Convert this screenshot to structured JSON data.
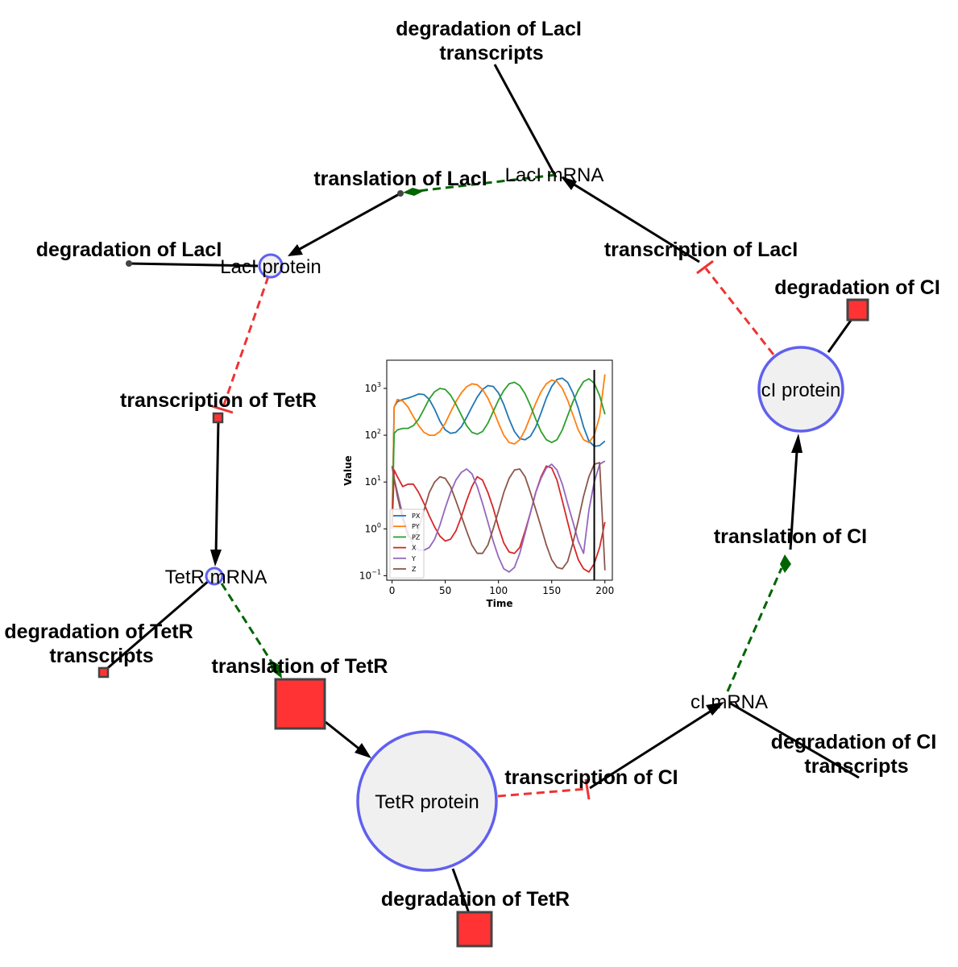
{
  "diagram": {
    "species": [
      {
        "id": "lacI_mrna",
        "label": "LacI mRNA"
      },
      {
        "id": "lacI_protein",
        "label": "LacI protein"
      },
      {
        "id": "tetR_mrna",
        "label": "TetR mRNA"
      },
      {
        "id": "tetR_protein",
        "label": "TetR protein"
      },
      {
        "id": "cI_mrna",
        "label": "cI mRNA"
      },
      {
        "id": "cI_protein",
        "label": "cI protein"
      }
    ],
    "reactions": [
      {
        "id": "deg_lacI_tx",
        "label_lines": [
          "degradation of LacI",
          "transcripts"
        ]
      },
      {
        "id": "trl_lacI",
        "label_lines": [
          "translation of LacI"
        ]
      },
      {
        "id": "deg_lacI",
        "label_lines": [
          "degradation of LacI"
        ]
      },
      {
        "id": "tsc_lacI",
        "label_lines": [
          "transcription of LacI"
        ]
      },
      {
        "id": "deg_cI",
        "label_lines": [
          "degradation of CI"
        ]
      },
      {
        "id": "tsc_tetR",
        "label_lines": [
          "transcription of TetR"
        ]
      },
      {
        "id": "trl_cI",
        "label_lines": [
          "translation of CI"
        ]
      },
      {
        "id": "deg_tetR_tx",
        "label_lines": [
          "degradation of TetR",
          "transcripts"
        ]
      },
      {
        "id": "trl_tetR",
        "label_lines": [
          "translation of TetR"
        ]
      },
      {
        "id": "deg_cI_tx",
        "label_lines": [
          "degradation of CI",
          "transcripts"
        ]
      },
      {
        "id": "tsc_cI",
        "label_lines": [
          "transcription of CI"
        ]
      },
      {
        "id": "deg_tetR",
        "label_lines": [
          "degradation of TetR"
        ]
      }
    ],
    "colors": {
      "species_fill": "#f0f0f0",
      "species_stroke": "#6060f0",
      "reaction_fill": "#ff3333",
      "reaction_stroke": "#444444",
      "activation": "#006400",
      "inhibition": "#ee3333",
      "flux": "#000000"
    }
  },
  "chart_data": {
    "type": "line",
    "xlabel": "Time",
    "ylabel": "Value",
    "y_scale": "log",
    "xlim": [
      -5,
      207
    ],
    "ylim": [
      0.08,
      4000
    ],
    "x_ticks": [
      0,
      50,
      100,
      150,
      200
    ],
    "y_ticks": [
      {
        "value": 0.1,
        "base": "10",
        "exp": "−1"
      },
      {
        "value": 1,
        "base": "10",
        "exp": "0"
      },
      {
        "value": 10,
        "base": "10",
        "exp": "1"
      },
      {
        "value": 100,
        "base": "10",
        "exp": "2"
      },
      {
        "value": 1000,
        "base": "10",
        "exp": "3"
      }
    ],
    "vline_x": 190,
    "legend_position": "lower-left",
    "series": [
      {
        "name": "PX",
        "color": "#1f77b4",
        "x": [
          0,
          2,
          5,
          10,
          15,
          20,
          25,
          30,
          35,
          40,
          45,
          50,
          55,
          60,
          65,
          70,
          75,
          80,
          85,
          90,
          95,
          100,
          105,
          110,
          115,
          120,
          125,
          130,
          135,
          140,
          145,
          150,
          155,
          160,
          165,
          170,
          175,
          180,
          185,
          190,
          195,
          200
        ],
        "y": [
          1,
          400,
          520,
          580,
          620,
          680,
          760,
          740,
          580,
          360,
          200,
          130,
          110,
          115,
          150,
          240,
          400,
          650,
          950,
          1150,
          1100,
          800,
          450,
          220,
          120,
          85,
          80,
          95,
          150,
          300,
          620,
          1100,
          1550,
          1650,
          1350,
          800,
          380,
          150,
          75,
          58,
          60,
          75
        ]
      },
      {
        "name": "PY",
        "color": "#ff7f0e",
        "x": [
          0,
          2,
          5,
          10,
          15,
          20,
          25,
          30,
          35,
          40,
          45,
          50,
          55,
          60,
          65,
          70,
          75,
          80,
          85,
          90,
          95,
          100,
          105,
          110,
          115,
          120,
          125,
          130,
          135,
          140,
          145,
          150,
          155,
          160,
          165,
          170,
          175,
          180,
          185,
          190,
          195,
          200
        ],
        "y": [
          1,
          400,
          580,
          540,
          400,
          250,
          160,
          115,
          100,
          100,
          120,
          180,
          310,
          520,
          800,
          1080,
          1250,
          1200,
          950,
          620,
          350,
          180,
          100,
          70,
          65,
          80,
          130,
          250,
          480,
          850,
          1250,
          1500,
          1400,
          1000,
          560,
          270,
          130,
          80,
          70,
          100,
          250,
          2000
        ]
      },
      {
        "name": "PZ",
        "color": "#2ca02c",
        "x": [
          0,
          2,
          5,
          10,
          15,
          20,
          25,
          30,
          35,
          40,
          45,
          50,
          55,
          60,
          65,
          70,
          75,
          80,
          85,
          90,
          95,
          100,
          105,
          110,
          115,
          120,
          125,
          130,
          135,
          140,
          145,
          150,
          155,
          160,
          165,
          170,
          175,
          180,
          185,
          190,
          195,
          200
        ],
        "y": [
          1,
          110,
          130,
          140,
          140,
          160,
          220,
          360,
          600,
          850,
          1000,
          950,
          720,
          460,
          270,
          160,
          115,
          105,
          120,
          180,
          320,
          560,
          900,
          1250,
          1350,
          1150,
          770,
          430,
          220,
          120,
          80,
          70,
          80,
          130,
          260,
          520,
          920,
          1400,
          1600,
          1300,
          700,
          280
        ]
      },
      {
        "name": "X",
        "color": "#d62728",
        "x": [
          0,
          2,
          5,
          10,
          15,
          20,
          25,
          30,
          35,
          40,
          45,
          50,
          55,
          60,
          65,
          70,
          75,
          80,
          85,
          90,
          95,
          100,
          105,
          110,
          115,
          120,
          125,
          130,
          135,
          140,
          145,
          150,
          155,
          160,
          165,
          170,
          175,
          180,
          185,
          190,
          195,
          200
        ],
        "y": [
          1,
          18,
          13,
          8,
          9,
          9,
          6,
          3.5,
          1.9,
          1.1,
          0.7,
          0.55,
          0.6,
          0.9,
          1.8,
          4,
          8,
          13,
          11,
          6,
          2.8,
          1.1,
          0.5,
          0.32,
          0.3,
          0.4,
          0.9,
          2.2,
          6,
          13,
          22,
          20,
          11,
          4,
          1.4,
          0.5,
          0.22,
          0.14,
          0.12,
          0.18,
          0.4,
          1.4
        ]
      },
      {
        "name": "Y",
        "color": "#9467bd",
        "x": [
          0,
          2,
          5,
          10,
          15,
          20,
          25,
          30,
          35,
          40,
          45,
          50,
          55,
          60,
          65,
          70,
          75,
          80,
          85,
          90,
          95,
          100,
          105,
          110,
          115,
          120,
          125,
          130,
          135,
          140,
          145,
          150,
          155,
          160,
          165,
          170,
          175,
          180,
          185,
          190,
          195,
          200
        ],
        "y": [
          22,
          12,
          6,
          2,
          0.8,
          0.45,
          0.35,
          0.35,
          0.4,
          0.6,
          1.2,
          2.8,
          6,
          11,
          16,
          19,
          15,
          8,
          3.5,
          1.4,
          0.55,
          0.25,
          0.14,
          0.12,
          0.15,
          0.3,
          0.8,
          2.2,
          6,
          12,
          20,
          24,
          18,
          9,
          3.5,
          1.4,
          0.55,
          0.3,
          2.5,
          10,
          24,
          28
        ]
      },
      {
        "name": "Z",
        "color": "#8c564b",
        "x": [
          0,
          2,
          5,
          10,
          15,
          20,
          25,
          30,
          35,
          40,
          45,
          50,
          55,
          60,
          65,
          70,
          75,
          80,
          85,
          90,
          95,
          100,
          105,
          110,
          115,
          120,
          125,
          130,
          135,
          140,
          145,
          150,
          155,
          160,
          165,
          170,
          175,
          180,
          185,
          190,
          195,
          200
        ],
        "y": [
          22,
          12,
          5,
          1.6,
          0.7,
          0.6,
          1,
          2.5,
          6,
          10,
          13,
          12,
          8,
          4,
          1.9,
          0.9,
          0.45,
          0.3,
          0.3,
          0.45,
          1,
          2.4,
          6,
          12,
          18,
          19,
          13,
          6,
          2.6,
          1.1,
          0.45,
          0.22,
          0.15,
          0.14,
          0.2,
          0.5,
          1.5,
          5,
          13,
          24,
          26,
          0.13
        ]
      }
    ]
  }
}
